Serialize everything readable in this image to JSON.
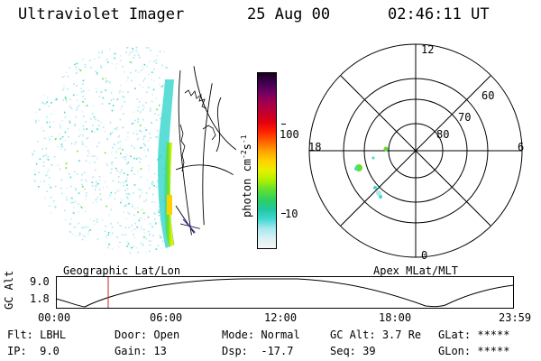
{
  "header": {
    "instrument": "Ultraviolet Imager",
    "date": "25 Aug 00",
    "time": "02:46:11 UT"
  },
  "colorbar": {
    "label": "photon cm",
    "label_sup": "-2",
    "label_s": "s",
    "label_sup2": "-1",
    "ticks": [
      "100",
      "10"
    ],
    "colors": [
      "#f5f5f5",
      "#d8f0f4",
      "#a8e8ee",
      "#40d8d0",
      "#20c8a0",
      "#30d060",
      "#60e030",
      "#b0f000",
      "#e8f000",
      "#ffd000",
      "#ffa000",
      "#ff6000",
      "#ff2000",
      "#e00010",
      "#c00030",
      "#a00050",
      "#700060",
      "#400050",
      "#180020"
    ]
  },
  "geo_panel": {
    "label": "Geographic Lat/Lon"
  },
  "polar_panel": {
    "label": "Apex MLat/MLT",
    "mlt_labels": {
      "top": "12",
      "bottom": "0",
      "left": "18",
      "right": "6"
    },
    "lat_labels": [
      "60",
      "70",
      "80"
    ]
  },
  "altitude_plot": {
    "ylabel": "GC Alt",
    "yticks": [
      "9.0",
      "1.8"
    ],
    "xticks": [
      "00:00",
      "06:00",
      "12:00",
      "18:00",
      "23:59"
    ],
    "marker_color": "#cc2222"
  },
  "status": {
    "row1": [
      {
        "key": "Flt:",
        "value": "LBHL"
      },
      {
        "key": "Door:",
        "value": "Open"
      },
      {
        "key": "Mode:",
        "value": "Normal"
      },
      {
        "key": "GC Alt:",
        "value": "3.7 Re"
      },
      {
        "key": "GLat:",
        "value": "*****"
      }
    ],
    "row2": [
      {
        "key": "IP:",
        "value": "9.0"
      },
      {
        "key": "Gain:",
        "value": "13"
      },
      {
        "key": "Dsp:",
        "value": "-17.7"
      },
      {
        "key": "Seq:",
        "value": "39"
      },
      {
        "key": "GLon:",
        "value": "*****"
      }
    ]
  }
}
